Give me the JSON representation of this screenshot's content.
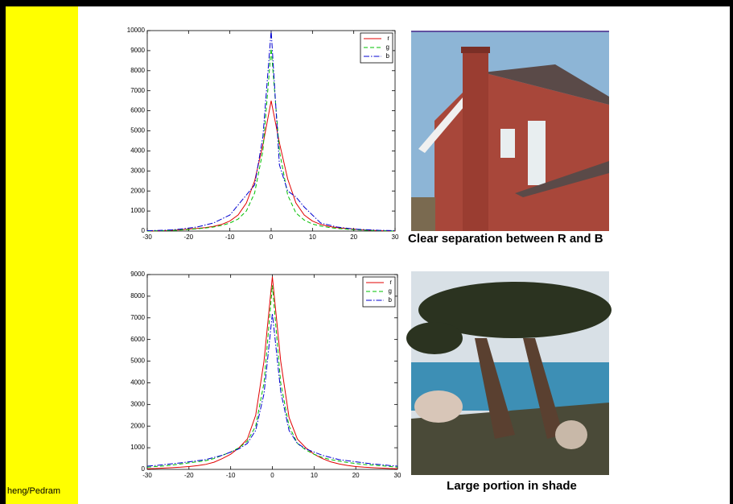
{
  "footer": "heng/Pedram",
  "chart_data": [
    {
      "type": "line",
      "caption": "Clear separation between R and B",
      "x": [
        -30,
        -28,
        -26,
        -24,
        -22,
        -20,
        -18,
        -16,
        -14,
        -12,
        -10,
        -8,
        -6,
        -4,
        -2,
        0,
        2,
        4,
        6,
        8,
        10,
        12,
        14,
        16,
        18,
        20,
        22,
        24,
        26,
        28,
        30
      ],
      "series": [
        {
          "name": "r",
          "color": "#e00000",
          "dash": "solid",
          "values": [
            0,
            10,
            20,
            40,
            60,
            100,
            130,
            170,
            230,
            330,
            500,
            800,
            1400,
            2500,
            4300,
            6500,
            4400,
            2600,
            1400,
            800,
            500,
            330,
            230,
            170,
            130,
            100,
            60,
            40,
            20,
            10,
            0
          ]
        },
        {
          "name": "g",
          "color": "#00c000",
          "dash": "dashed",
          "values": [
            0,
            10,
            20,
            30,
            50,
            80,
            110,
            150,
            200,
            280,
            400,
            600,
            1000,
            1900,
            4000,
            9100,
            4000,
            1800,
            900,
            550,
            350,
            250,
            180,
            130,
            100,
            70,
            50,
            30,
            20,
            10,
            0
          ]
        },
        {
          "name": "b",
          "color": "#0000d0",
          "dash": "dashdot",
          "values": [
            20,
            30,
            40,
            60,
            100,
            150,
            200,
            300,
            400,
            600,
            800,
            1300,
            1800,
            2300,
            4700,
            10000,
            3300,
            2000,
            1700,
            1200,
            800,
            400,
            300,
            200,
            150,
            100,
            80,
            60,
            40,
            30,
            20
          ]
        }
      ],
      "xlim": [
        -30,
        30
      ],
      "xticks": [
        -30,
        -20,
        -10,
        0,
        10,
        20,
        30
      ],
      "ylim": [
        0,
        10000
      ],
      "yticks": [
        0,
        1000,
        2000,
        3000,
        4000,
        5000,
        6000,
        7000,
        8000,
        9000,
        10000
      ],
      "legend": "upper right"
    },
    {
      "type": "line",
      "caption": "Large portion in shade",
      "x": [
        -30,
        -28,
        -26,
        -24,
        -22,
        -20,
        -18,
        -16,
        -14,
        -12,
        -10,
        -8,
        -6,
        -4,
        -2,
        0,
        2,
        4,
        6,
        8,
        10,
        12,
        14,
        16,
        18,
        20,
        22,
        24,
        26,
        28,
        30
      ],
      "series": [
        {
          "name": "r",
          "color": "#e00000",
          "dash": "solid",
          "values": [
            30,
            40,
            60,
            80,
            100,
            130,
            170,
            230,
            330,
            500,
            700,
            1000,
            1400,
            2500,
            5000,
            8900,
            5000,
            2400,
            1400,
            1000,
            700,
            500,
            350,
            250,
            180,
            130,
            100,
            80,
            60,
            40,
            30
          ]
        },
        {
          "name": "g",
          "color": "#00c000",
          "dash": "dashed",
          "values": [
            100,
            130,
            160,
            200,
            250,
            300,
            350,
            400,
            500,
            650,
            800,
            1000,
            1300,
            2000,
            4000,
            8500,
            4000,
            2000,
            1200,
            900,
            700,
            550,
            450,
            380,
            320,
            270,
            230,
            200,
            170,
            140,
            100
          ]
        },
        {
          "name": "b",
          "color": "#0000d0",
          "dash": "dashdot",
          "values": [
            150,
            180,
            220,
            260,
            300,
            350,
            400,
            450,
            550,
            650,
            800,
            950,
            1200,
            1800,
            3500,
            7200,
            3600,
            1800,
            1200,
            950,
            800,
            650,
            550,
            450,
            400,
            350,
            300,
            250,
            220,
            180,
            150
          ]
        }
      ],
      "xlim": [
        -30,
        30
      ],
      "xticks": [
        -30,
        -20,
        -10,
        0,
        10,
        20,
        30
      ],
      "ylim": [
        0,
        9000
      ],
      "yticks": [
        0,
        1000,
        2000,
        3000,
        4000,
        5000,
        6000,
        7000,
        8000,
        9000
      ],
      "legend": "upper right"
    }
  ]
}
